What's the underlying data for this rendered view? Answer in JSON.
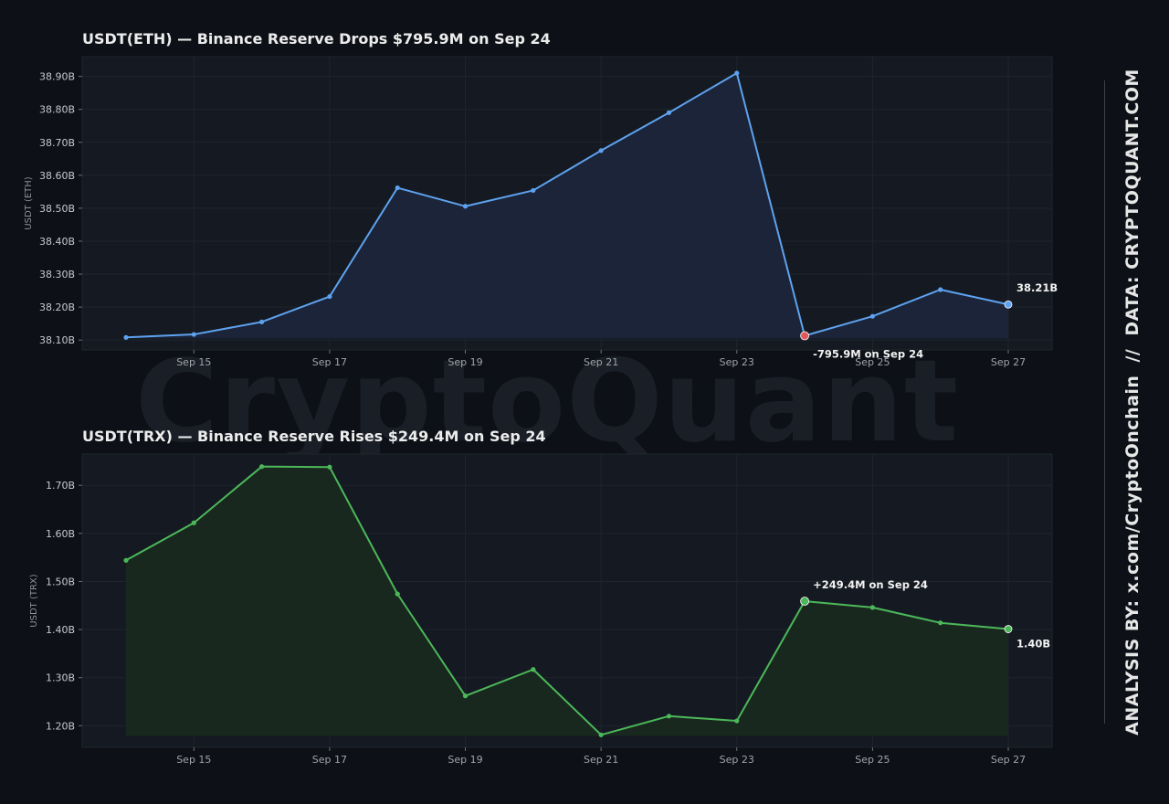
{
  "watermark": "CryptoQuant",
  "sidebar": {
    "analysis": "ANALYSIS BY: x.com/CryptoOnchain",
    "separator": "//",
    "data": "DATA: CRYPTOQUANT.COM"
  },
  "chart_data": [
    {
      "type": "area",
      "title": "USDT(ETH) — Binance Reserve Drops $795.9M on Sep 24",
      "ylabel": "USDT (ETH)",
      "xlabel": "",
      "x": [
        "Sep 14",
        "Sep 15",
        "Sep 16",
        "Sep 17",
        "Sep 18",
        "Sep 19",
        "Sep 20",
        "Sep 21",
        "Sep 22",
        "Sep 23",
        "Sep 24",
        "Sep 25",
        "Sep 26",
        "Sep 27"
      ],
      "x_tick_labels": [
        "Sep 15",
        "Sep 17",
        "Sep 19",
        "Sep 21",
        "Sep 23",
        "Sep 25",
        "Sep 27"
      ],
      "values": [
        38.108,
        38.117,
        38.155,
        38.232,
        38.562,
        38.506,
        38.554,
        38.675,
        38.79,
        38.91,
        38.113,
        38.172,
        38.253,
        38.208
      ],
      "unit": "B",
      "ylim": [
        38.07,
        38.96
      ],
      "y_ticks": [
        38.1,
        38.2,
        38.3,
        38.4,
        38.5,
        38.6,
        38.7,
        38.8,
        38.9
      ],
      "y_tick_labels": [
        "38.10B",
        "38.20B",
        "38.30B",
        "38.40B",
        "38.50B",
        "38.60B",
        "38.70B",
        "38.80B",
        "38.90B"
      ],
      "color": "#5ea2ef",
      "fill": "#1b2438",
      "highlight": {
        "index": 10,
        "color": "#e05a5a",
        "label": "-795.9M on Sep 24",
        "position": "below"
      },
      "last": {
        "label": "38.21B",
        "position": "above"
      },
      "grid": true
    },
    {
      "type": "area",
      "title": "USDT(TRX) — Binance Reserve Rises $249.4M on Sep 24",
      "ylabel": "USDT (TRX)",
      "xlabel": "",
      "x": [
        "Sep 14",
        "Sep 15",
        "Sep 16",
        "Sep 17",
        "Sep 18",
        "Sep 19",
        "Sep 20",
        "Sep 21",
        "Sep 22",
        "Sep 23",
        "Sep 24",
        "Sep 25",
        "Sep 26",
        "Sep 27"
      ],
      "x_tick_labels": [
        "Sep 15",
        "Sep 17",
        "Sep 19",
        "Sep 21",
        "Sep 23",
        "Sep 25",
        "Sep 27"
      ],
      "values": [
        1.544,
        1.622,
        1.739,
        1.738,
        1.474,
        1.262,
        1.317,
        1.181,
        1.22,
        1.21,
        1.459,
        1.446,
        1.414,
        1.401
      ],
      "unit": "B",
      "ylim": [
        1.155,
        1.765
      ],
      "y_ticks": [
        1.2,
        1.3,
        1.4,
        1.5,
        1.6,
        1.7
      ],
      "y_tick_labels": [
        "1.20B",
        "1.30B",
        "1.40B",
        "1.50B",
        "1.60B",
        "1.70B"
      ],
      "color": "#4cb85a",
      "fill": "#19281e",
      "highlight": {
        "index": 10,
        "color": "#4cb85a",
        "label": "+249.4M on Sep 24",
        "position": "above"
      },
      "last": {
        "label": "1.40B",
        "position": "below"
      },
      "grid": true
    }
  ]
}
